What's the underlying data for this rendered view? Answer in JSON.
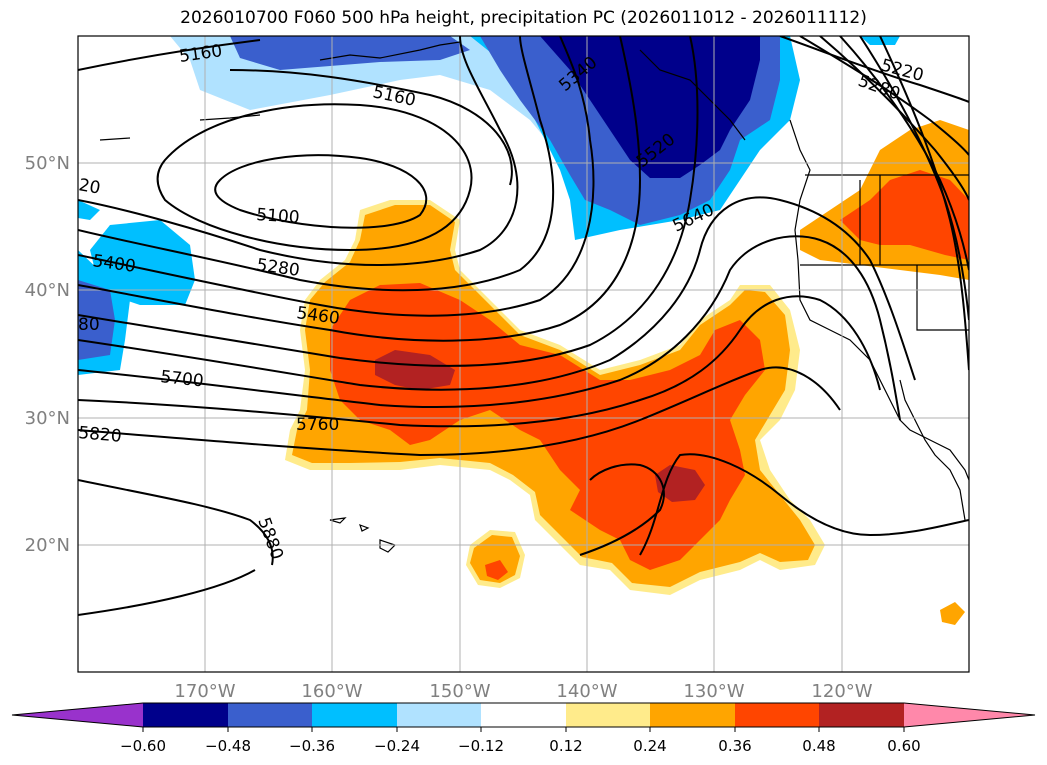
{
  "title": "2026010700 F060 500 hPa height, precipitation PC (2026011012 - 2026011112)",
  "map": {
    "lon_labels": [
      "170°W",
      "160°W",
      "150°W",
      "140°W",
      "130°W",
      "120°W"
    ],
    "lat_labels": [
      "50°N",
      "40°N",
      "30°N",
      "20°N"
    ],
    "grid_color": "#b0b0b0",
    "tick_label_color": "#808080"
  },
  "contours": {
    "unit": "hPa height",
    "labels": [
      "5160",
      "5160",
      "5340",
      "5520",
      "5640",
      "5220",
      "5280",
      "20",
      "5100",
      "5280",
      "5400",
      "80",
      "5460",
      "5700",
      "5760",
      "5820",
      "5880"
    ]
  },
  "colorbar": {
    "ticks": [
      "−0.60",
      "−0.48",
      "−0.36",
      "−0.24",
      "−0.12",
      "0.12",
      "0.24",
      "0.36",
      "0.48",
      "0.60"
    ],
    "colors": [
      "#9932cc",
      "#00008b",
      "#3a5fcd",
      "#00bfff",
      "#b0e2ff",
      "#ffffff",
      "#ffeb8b",
      "#ffa500",
      "#ff4500",
      "#b22222",
      "#ff88aa"
    ]
  }
}
